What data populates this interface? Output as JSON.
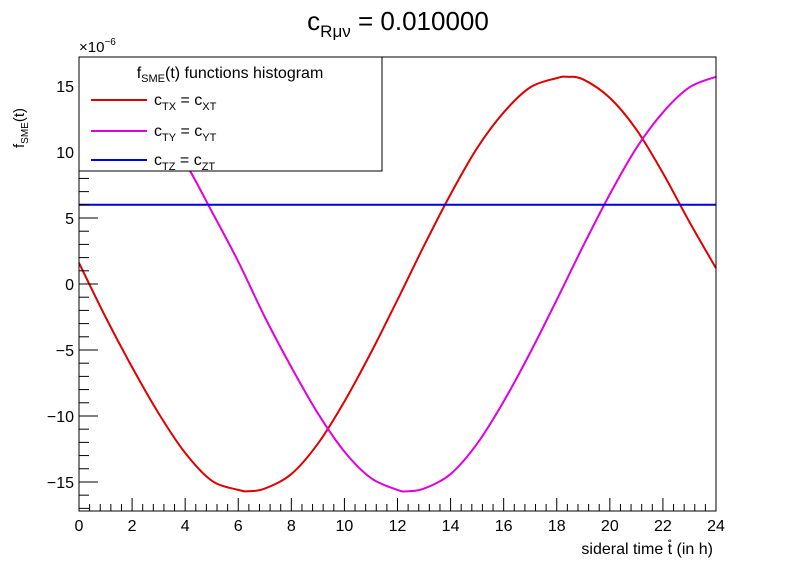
{
  "chart_data": {
    "type": "line",
    "title": {
      "main": "c",
      "sub": "Rμν",
      "rest": " = 0.010000"
    },
    "xlabel": "sideral time  t̊ (in h)",
    "ylabel": {
      "main": "f",
      "sub": "SME",
      "rest": "(t)"
    },
    "y_exponent": {
      "base": "×10",
      "power": "−6"
    },
    "xlim": [
      0,
      24
    ],
    "ylim": [
      -17.2,
      17.2
    ],
    "x_ticks": [
      0,
      2,
      4,
      6,
      8,
      10,
      12,
      14,
      16,
      18,
      20,
      22,
      24
    ],
    "x_tick_labels": [
      "0",
      "2",
      "4",
      "6",
      "8",
      "10",
      "12",
      "14",
      "16",
      "18",
      "20",
      "22",
      "24"
    ],
    "y_ticks": [
      -15,
      -10,
      -5,
      0,
      5,
      10,
      15
    ],
    "y_tick_labels": [
      "−15",
      "−10",
      "−5",
      "0",
      "5",
      "10",
      "15"
    ],
    "legend": {
      "title": {
        "main": "f",
        "sub": "SME",
        "rest": "(t) functions histogram"
      },
      "placement": "top-left"
    },
    "grid": false,
    "series": [
      {
        "label": {
          "a": "c",
          "a_sub": "TX",
          "eq": " = c",
          "b_sub": "XT"
        },
        "color": "#e00000",
        "x": [
          0,
          1,
          2,
          3,
          4,
          5,
          6,
          6.4,
          7,
          8,
          9,
          10,
          11,
          12,
          13,
          14,
          15,
          16,
          17,
          18,
          18.4,
          19,
          20,
          21,
          22,
          23,
          24
        ],
        "values": [
          1.6,
          -2.5,
          -6.3,
          -9.8,
          -12.8,
          -14.9,
          -15.6,
          -15.7,
          -15.5,
          -14.4,
          -12.1,
          -8.9,
          -5.2,
          -1.2,
          2.9,
          6.8,
          10.3,
          13.0,
          14.9,
          15.6,
          15.7,
          15.5,
          14.1,
          11.7,
          8.4,
          4.7,
          1.2
        ]
      },
      {
        "label": {
          "a": "c",
          "a_sub": "TY",
          "eq": " = c",
          "b_sub": "YT"
        },
        "color": "#e000e0",
        "x": [
          0,
          1,
          2,
          3,
          4,
          5,
          6,
          7,
          8,
          9,
          10,
          11,
          12,
          12.4,
          13,
          14,
          15,
          16,
          17,
          18,
          19,
          20,
          21,
          22,
          23,
          24
        ],
        "values": [
          15.6,
          15.5,
          14.3,
          12.0,
          9.2,
          5.5,
          1.7,
          -2.5,
          -6.3,
          -9.8,
          -12.7,
          -14.7,
          -15.6,
          -15.7,
          -15.5,
          -14.4,
          -12.1,
          -8.9,
          -5.2,
          -1.2,
          2.9,
          6.8,
          10.3,
          13.0,
          14.9,
          15.7
        ]
      },
      {
        "label": {
          "a": "c",
          "a_sub": "TZ",
          "eq": " = c",
          "b_sub": "ZT"
        },
        "color": "#0000e0",
        "x": [
          0,
          24
        ],
        "values": [
          6.0,
          6.0
        ]
      }
    ]
  }
}
